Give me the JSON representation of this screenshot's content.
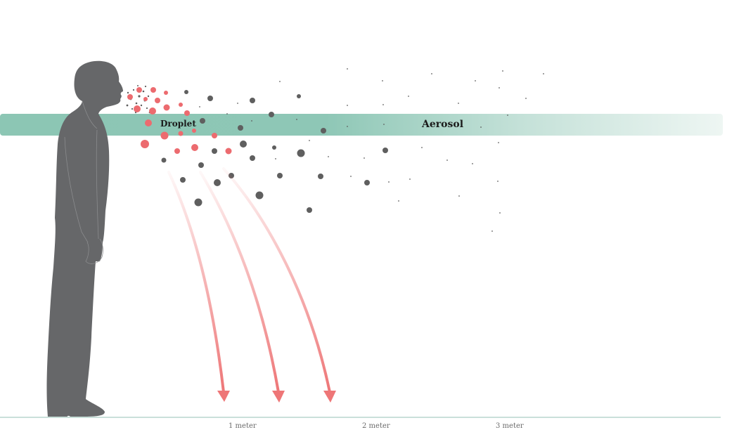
{
  "labels": {
    "droplet": "Droplet",
    "aerosol": "Aerosol"
  },
  "distance_axis": {
    "ticks": [
      "1 meter",
      "2 meter",
      "3 meter"
    ]
  },
  "colors": {
    "person": "#666769",
    "droplet": "#ec6b6f",
    "aerosol_particle": "#5f5f5f",
    "band": "#8cc6b4",
    "arrow": "#ee7677",
    "ground": "#b7d6cd"
  }
}
